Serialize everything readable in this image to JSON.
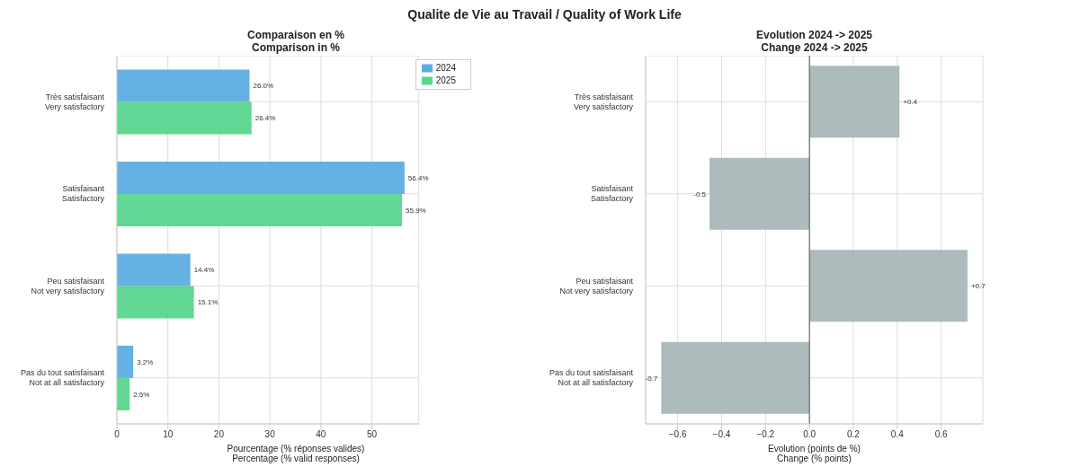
{
  "chart_data": [
    {
      "type": "bar",
      "orientation": "horizontal",
      "annotations": [
        "Qualite de Vie au Travail / Quality of Work Life"
      ],
      "title": "Comparaison en %\nComparison in %",
      "xlabel": "Pourcentage (% réponses valides)\nPercentage (% valid responses)",
      "categories": [
        "Très satisfaisant\nVery satisfactory",
        "Satisfaisant\nSatisfactory",
        "Peu satisfaisant\nNot very satisfactory",
        "Pas du tout satisfaisant\nNot at all satisfactory"
      ],
      "series": [
        {
          "name": "2024",
          "color": "#5dade2",
          "values": [
            26.0,
            56.4,
            14.4,
            3.2
          ],
          "value_labels": [
            "26.0%",
            "56.4%",
            "14.4%",
            "3.2%"
          ]
        },
        {
          "name": "2025",
          "color": "#58d68d",
          "values": [
            26.4,
            55.9,
            15.1,
            2.5
          ],
          "value_labels": [
            "26.4%",
            "55.9%",
            "15.1%",
            "2.5%"
          ]
        }
      ],
      "xlim": [
        0,
        59.2
      ],
      "xticks": [
        0,
        10,
        20,
        30,
        40,
        50
      ],
      "grid": true,
      "legend": "top right"
    },
    {
      "type": "bar",
      "orientation": "horizontal",
      "title": "Evolution 2024 -> 2025\nChange 2024 -> 2025",
      "xlabel": "Evolution (points de %)\nChange (% points)",
      "categories": [
        "Très satisfaisant\nVery satisfactory",
        "Satisfaisant\nSatisfactory",
        "Peu satisfaisant\nNot very satisfactory",
        "Pas du tout satisfaisant\nNot at all satisfactory"
      ],
      "series": [
        {
          "color": "#aab7b8",
          "values": [
            0.41,
            -0.455,
            0.72,
            -0.675
          ],
          "value_labels": [
            "+0.4",
            "-0.5",
            "+0.7",
            "-0.7"
          ]
        }
      ],
      "xlim": [
        -0.746,
        0.79
      ],
      "xticks": [
        {
          "value": -0.6,
          "label": "−0.6"
        },
        {
          "value": -0.4,
          "label": "−0.4"
        },
        {
          "value": -0.2,
          "label": "−0.2"
        },
        {
          "value": 0,
          "label": "0.0"
        },
        0.2,
        0.4,
        0.6
      ],
      "grid": true,
      "ref_lines": [
        {
          "axis": "x",
          "value": 0,
          "color": "#555555"
        }
      ]
    }
  ]
}
